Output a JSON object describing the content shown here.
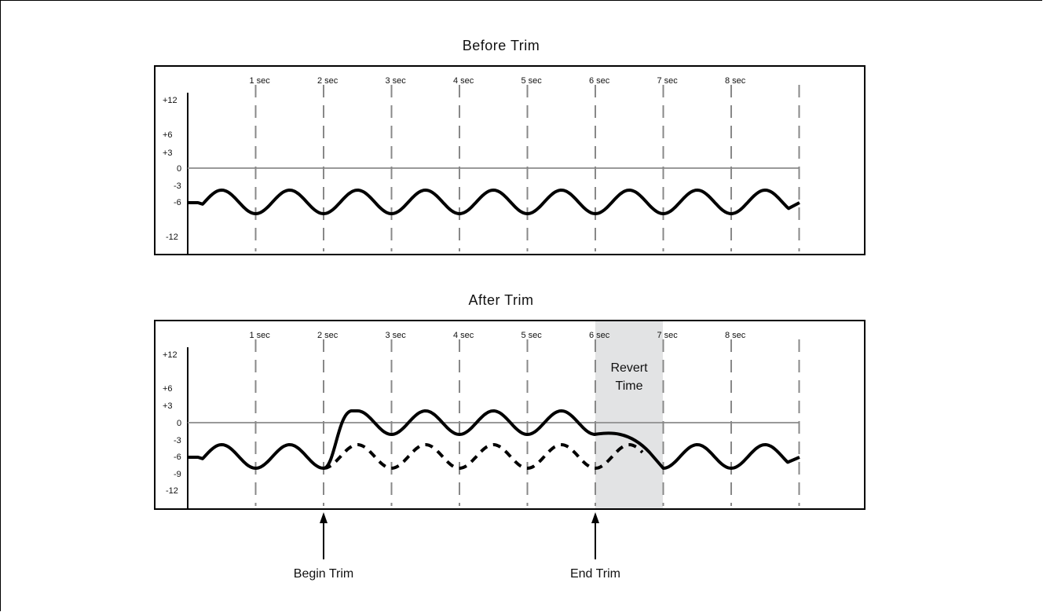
{
  "panels": [
    {
      "id": "before",
      "title": "Before Trim",
      "ticks": [
        "1 sec",
        "2 sec",
        "3 sec",
        "4 sec",
        "5 sec",
        "6 sec",
        "7 sec",
        "8 sec"
      ],
      "ylabels": [
        "+12",
        "+6",
        "+3",
        "0",
        "-3",
        "-6",
        "-12"
      ]
    },
    {
      "id": "after",
      "title": "After Trim",
      "ticks": [
        "1 sec",
        "2 sec",
        "3 sec",
        "4 sec",
        "5 sec",
        "6 sec",
        "7 sec",
        "8 sec"
      ],
      "ylabels": [
        "+12",
        "+6",
        "+3",
        "0",
        "-3",
        "-6",
        "-9",
        "-12"
      ],
      "revert_label_line1": "Revert",
      "revert_label_line2": "Time",
      "revert_start_sec": 6,
      "revert_end_sec": 7
    }
  ],
  "annotations": {
    "begin_trim": "Begin Trim",
    "begin_trim_sec": 2,
    "end_trim": "End Trim",
    "end_trim_sec": 6
  }
}
